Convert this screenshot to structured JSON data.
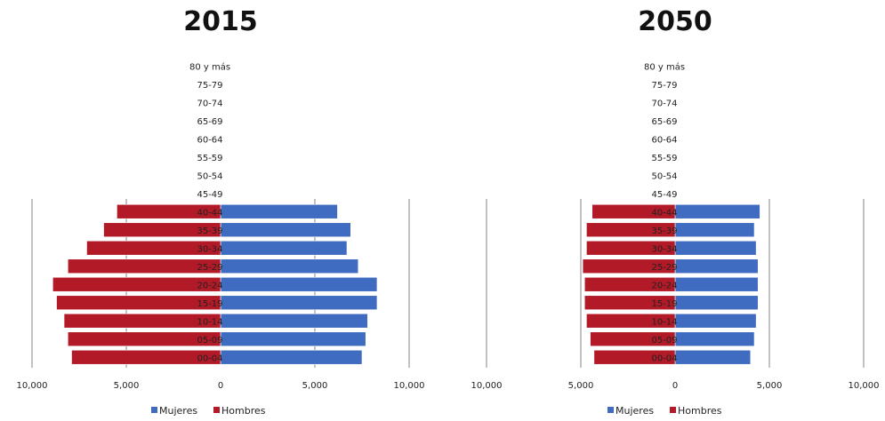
{
  "chart_data": [
    {
      "type": "bar",
      "title": "2015",
      "categories": [
        "80 y más",
        "75-79",
        "70-74",
        "65-69",
        "60-64",
        "55-59",
        "50-54",
        "45-49",
        "40-44",
        "35-39",
        "30-34",
        "25-29",
        "20-24",
        "15-19",
        "10-14",
        "05-09",
        "00-04"
      ],
      "series": [
        {
          "name": "Mujeres",
          "color": "#3f6cc0",
          "values": [
            0,
            0,
            0,
            0,
            0,
            0,
            0,
            0,
            6200,
            6900,
            6700,
            7300,
            8300,
            8300,
            7800,
            7700,
            7500
          ]
        },
        {
          "name": "Hombres",
          "color": "#b21a28",
          "values": [
            0,
            0,
            0,
            0,
            0,
            0,
            0,
            0,
            5500,
            6200,
            7100,
            8100,
            8900,
            8700,
            8300,
            8100,
            7900
          ]
        }
      ],
      "xticks": [
        "10,000",
        "5,000",
        "0",
        "5,000",
        "10,000"
      ],
      "xlim": [
        -10000,
        10000
      ],
      "orientation": "horizontal",
      "legend": "bottom"
    },
    {
      "type": "bar",
      "title": "2050",
      "categories": [
        "80 y más",
        "75-79",
        "70-74",
        "65-69",
        "60-64",
        "55-59",
        "50-54",
        "45-49",
        "40-44",
        "35-39",
        "30-34",
        "25-29",
        "20-24",
        "15-19",
        "10-14",
        "05-09",
        "00-04"
      ],
      "series": [
        {
          "name": "Mujeres",
          "color": "#3f6cc0",
          "values": [
            0,
            0,
            0,
            0,
            0,
            0,
            0,
            0,
            4500,
            4200,
            4300,
            4400,
            4400,
            4400,
            4300,
            4200,
            4000
          ]
        },
        {
          "name": "Hombres",
          "color": "#b21a28",
          "values": [
            0,
            0,
            0,
            0,
            0,
            0,
            0,
            0,
            4400,
            4700,
            4700,
            4900,
            4800,
            4800,
            4700,
            4500,
            4300
          ]
        }
      ],
      "xticks": [
        "10,000",
        "5,000",
        "0",
        "5,000",
        "10,000"
      ],
      "xlim": [
        -10000,
        10000
      ],
      "orientation": "horizontal",
      "legend": "bottom"
    }
  ]
}
